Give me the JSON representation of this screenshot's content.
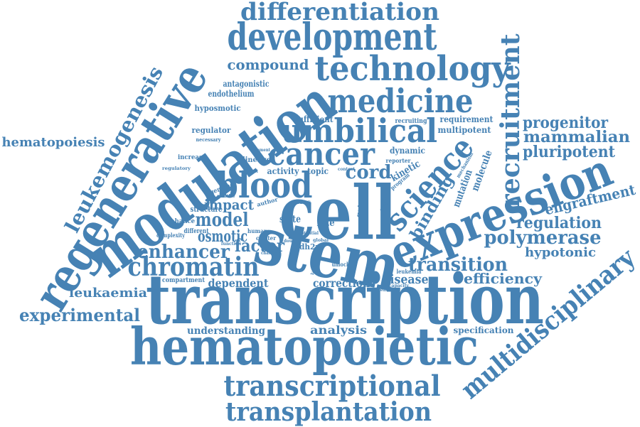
{
  "color": "#4682b4",
  "words": [
    "transcription",
    "cell",
    "stem",
    "hematopoietic",
    "modulation",
    "regenerative",
    "expression",
    "development",
    "technology",
    "medicine",
    "umbilical",
    "cancer",
    "blood",
    "science",
    "differentiation",
    "transcriptional",
    "transplantation",
    "recruitment",
    "multidisciplinary",
    "leukemogenesis",
    "chromatin",
    "enhancer",
    "polymerase",
    "transition",
    "progenitor",
    "mammalian",
    "pluripotent",
    "regulation",
    "engraftment",
    "experimental",
    "compound",
    "cord",
    "model",
    "osmotic",
    "factor",
    "impact",
    "binding",
    "hypotonic",
    "efficiency",
    "hematopoiesis",
    "leukaemia",
    "dependent",
    "correction",
    "disease",
    "analysis",
    "understanding",
    "specification",
    "kinetic",
    "molecule",
    "mutation",
    "activity",
    "topic",
    "dynamic",
    "requirement",
    "multipotent",
    "sufficient",
    "regulator",
    "lineage",
    "endothelium",
    "antagonistic",
    "hyposmotic",
    "increase",
    "structure",
    "enhance",
    "genome",
    "complexity",
    "different",
    "compartment",
    "state",
    "fate",
    "idh2r",
    "unlock",
    "leukemia",
    "recruiting",
    "reporter",
    "mechanism",
    "program",
    "region",
    "gata",
    "loss",
    "author",
    "human",
    "cluster",
    "function",
    "potential",
    "double",
    "change",
    "element",
    "mutant",
    "necessary",
    "regulatory",
    "positive",
    "latent",
    "global",
    "context",
    "capacity",
    "leukemic"
  ]
}
